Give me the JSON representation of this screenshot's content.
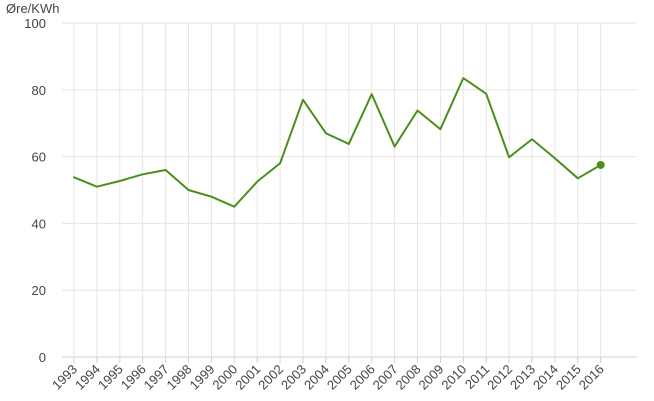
{
  "chart_data": {
    "type": "line",
    "unit_label": "Øre/KWh",
    "categories": [
      "1993",
      "1994",
      "1995",
      "1996",
      "1997",
      "1998",
      "1999",
      "2000",
      "2001",
      "2002",
      "2003",
      "2004",
      "2005",
      "2006",
      "2007",
      "2008",
      "2009",
      "2010",
      "2011",
      "2012",
      "2013",
      "2014",
      "2015",
      "2016"
    ],
    "series": [
      {
        "values": [
          53.8,
          51.0,
          52.7,
          54.7,
          56.0,
          50.0,
          48.0,
          45.0,
          52.5,
          58.0,
          77.0,
          67.0,
          63.8,
          78.7,
          63.0,
          73.8,
          68.2,
          83.5,
          78.8,
          59.8,
          65.2,
          59.5,
          53.5,
          57.5
        ],
        "color": "#4a8f1c"
      }
    ],
    "y_ticks": [
      0,
      20,
      40,
      60,
      80,
      100
    ],
    "ylim": [
      0,
      100
    ],
    "grid": true,
    "last_point_marker": true
  }
}
